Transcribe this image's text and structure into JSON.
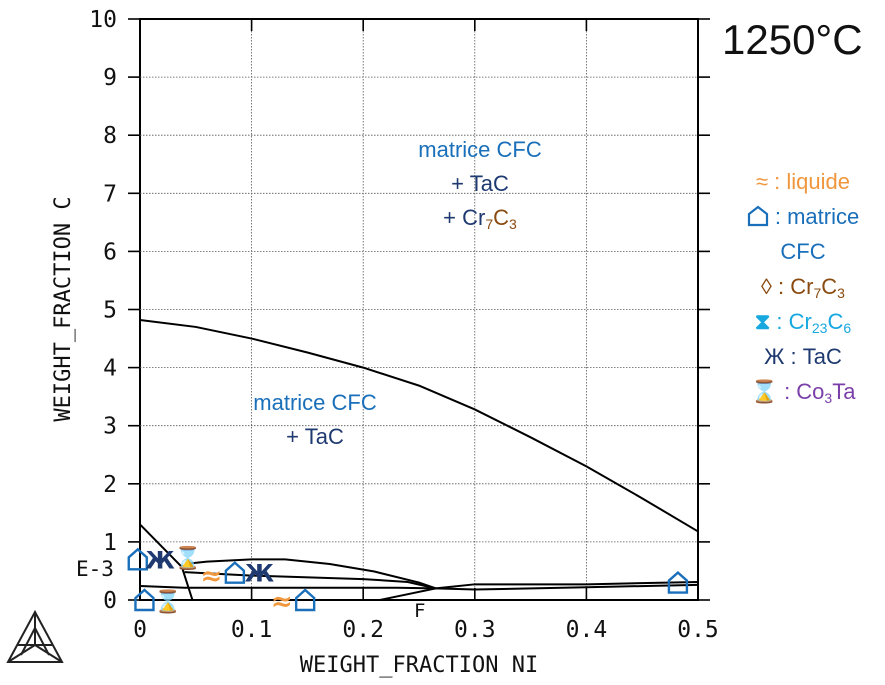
{
  "chart_data": {
    "type": "line",
    "title": "1250°C",
    "xlabel": "WEIGHT_FRACTION NI",
    "ylabel": "WEIGHT_FRACTION C",
    "y_exponent_label": "E-3",
    "x_extra_label": "F",
    "xlim": [
      0,
      0.5
    ],
    "ylim": [
      0,
      10
    ],
    "x_ticks": [
      "0",
      "0.1",
      "0.2",
      "0.3",
      "0.4",
      "0.5"
    ],
    "y_ticks": [
      "0",
      "1",
      "2",
      "3",
      "4",
      "5",
      "6",
      "7",
      "8",
      "9",
      "10"
    ],
    "grid": true,
    "series": [
      {
        "x": [
          0,
          0.05,
          0.1,
          0.15,
          0.2,
          0.25,
          0.3,
          0.35,
          0.4,
          0.45,
          0.5
        ],
        "y": [
          4.82,
          4.7,
          4.5,
          4.26,
          4.0,
          3.69,
          3.28,
          2.8,
          2.3,
          1.75,
          1.18
        ]
      },
      {
        "x": [
          0,
          0.04
        ],
        "y": [
          1.3,
          0.52
        ]
      },
      {
        "x": [
          0.037,
          0.042,
          0.047
        ],
        "y": [
          0.6,
          0.3,
          0.0
        ]
      },
      {
        "x": [
          0.04,
          0.06,
          0.1,
          0.13,
          0.17,
          0.21,
          0.25,
          0.265
        ],
        "y": [
          0.62,
          0.66,
          0.7,
          0.7,
          0.62,
          0.49,
          0.3,
          0.2
        ]
      },
      {
        "x": [
          0,
          0.04,
          0.23,
          0.265
        ],
        "y": [
          0.24,
          0.21,
          0.21,
          0.2
        ]
      },
      {
        "x": [
          0.04,
          0.1,
          0.2,
          0.24,
          0.265
        ],
        "y": [
          0.48,
          0.42,
          0.36,
          0.31,
          0.2
        ]
      },
      {
        "x": [
          0.265,
          0.3,
          0.4,
          0.5
        ],
        "y": [
          0.2,
          0.27,
          0.27,
          0.31
        ]
      },
      {
        "x": [
          0.265,
          0.3,
          0.4,
          0.5
        ],
        "y": [
          0.2,
          0.18,
          0.22,
          0.26
        ]
      },
      {
        "x": [
          0.215,
          0.24,
          0.265
        ],
        "y": [
          0.0,
          0.1,
          0.2
        ]
      }
    ],
    "annotations": {
      "region_upper": {
        "line1": "matrice CFC",
        "line2": "+ TaC",
        "line3_main": "+ Cr",
        "line3_sub1": "7",
        "line3_c": "C",
        "line3_sub2": "3"
      },
      "region_lower": {
        "line1": "matrice CFC",
        "line2": "+ TaC"
      },
      "legend": {
        "liquide": {
          "symbol": "≈",
          "text": ": liquide"
        },
        "matrice_1": {
          "text": ": matrice"
        },
        "matrice_2": {
          "text": "CFC"
        },
        "cr7c3": {
          "symbol": "◊",
          "text": ": Cr",
          "sub1": "7",
          "c": "C",
          "sub2": "3"
        },
        "cr23c6": {
          "symbol": "⧗",
          "text": ": Cr",
          "sub1": "23",
          "c": "C",
          "sub2": "6"
        },
        "tac": {
          "symbol": "Ж",
          "text": " : TaC"
        },
        "co3ta": {
          "symbol": "⌛",
          "text": ": Co",
          "sub1": "3",
          "c": "Ta"
        }
      },
      "marker_symbols": {
        "liquide": "≈",
        "tac": "Ж",
        "co3ta": "⌛"
      }
    },
    "markers": [
      {
        "kind": "matrice",
        "x": -0.002,
        "y": 0.7
      },
      {
        "kind": "tac",
        "x": 0.018,
        "y": 0.7
      },
      {
        "kind": "co3ta",
        "x": 0.043,
        "y": 0.75
      },
      {
        "kind": "matrice",
        "x": 0.004,
        "y": 0.0
      },
      {
        "kind": "co3ta",
        "x": 0.025,
        "y": 0.0
      },
      {
        "kind": "liquide",
        "x": 0.064,
        "y": 0.42
      },
      {
        "kind": "matrice",
        "x": 0.085,
        "y": 0.47
      },
      {
        "kind": "tac",
        "x": 0.107,
        "y": 0.47
      },
      {
        "kind": "liquide",
        "x": 0.127,
        "y": -0.02
      },
      {
        "kind": "matrice",
        "x": 0.148,
        "y": 0.0
      },
      {
        "kind": "matrice",
        "x": 0.482,
        "y": 0.3
      }
    ],
    "colors": {
      "line": "#000000",
      "grid": "#555555",
      "blue": "#1a6fba",
      "navy": "#1f3a70",
      "brown": "#8a4b10",
      "orange": "#f0963c",
      "cyan": "#18a8e0",
      "purple": "#7a3fa8"
    }
  }
}
